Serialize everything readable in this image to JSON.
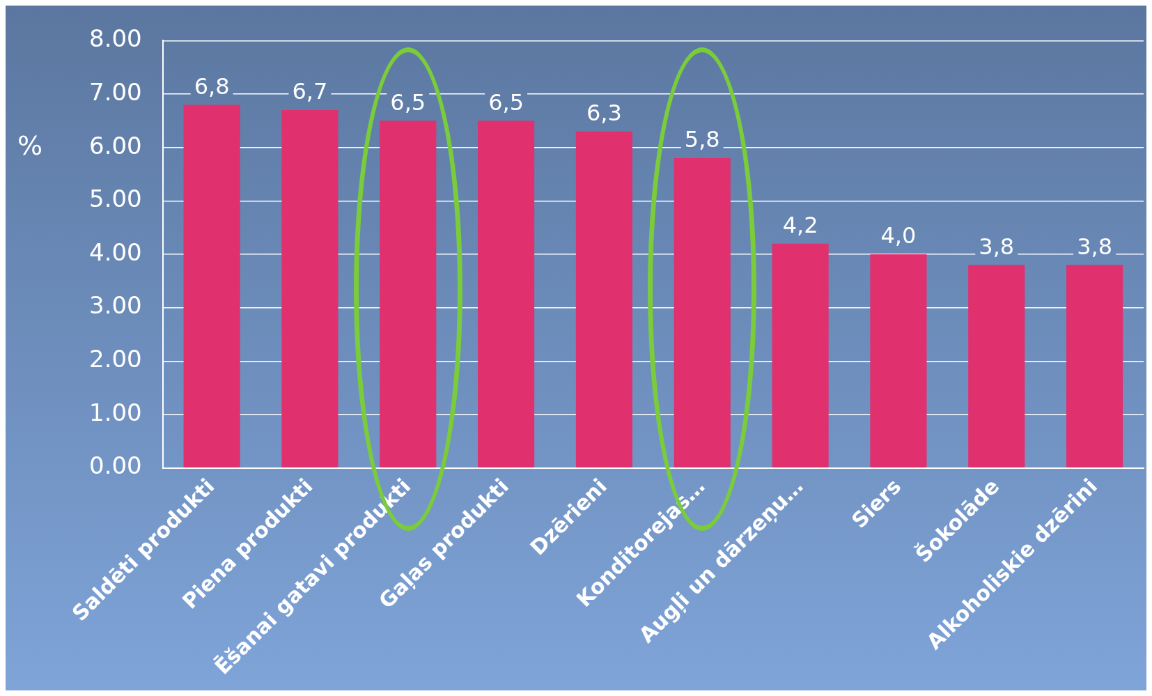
{
  "chart_data": {
    "type": "bar",
    "ylabel": "%",
    "categories": [
      "Saldēti produkti",
      "Piena produkti",
      "Ēšanai gatavi produkti",
      "Gaļas produkti",
      "Dzērieni",
      "Konditorejas…",
      "Augļi un dārzeņu…",
      "Siers",
      "Šokolāde",
      "Alkoholiskie dzērini"
    ],
    "values": [
      6.8,
      6.7,
      6.5,
      6.5,
      6.3,
      5.8,
      4.2,
      4.0,
      3.8,
      3.8
    ],
    "value_labels": [
      "6,8",
      "6,7",
      "6,5",
      "6,5",
      "6,3",
      "5,8",
      "4,2",
      "4,0",
      "3,8",
      "3,8"
    ],
    "color": "#e0306e",
    "ylim": [
      0,
      8
    ],
    "yticks": [
      {
        "value": 0,
        "label": "0.00"
      },
      {
        "value": 1,
        "label": "1.00"
      },
      {
        "value": 2,
        "label": "2.00"
      },
      {
        "value": 3,
        "label": "3.00"
      },
      {
        "value": 4,
        "label": "4.00"
      },
      {
        "value": 5,
        "label": "5.00"
      },
      {
        "value": 6,
        "label": "6.00"
      },
      {
        "value": 7,
        "label": "7.00"
      },
      {
        "value": 8,
        "label": "8.00"
      }
    ],
    "grid": "y",
    "legend": false
  }
}
